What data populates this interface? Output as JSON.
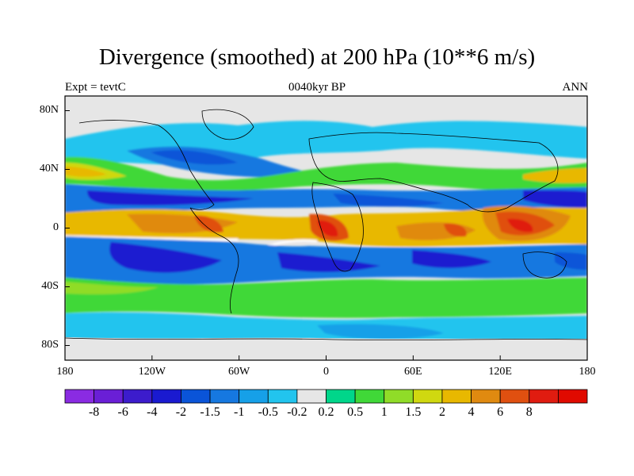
{
  "title": "Divergence (smoothed) at 200 hPa (10**6 m/s)",
  "subtitle_left": "Expt = tevtC",
  "subtitle_center": "0040kyr BP",
  "subtitle_right": "ANN",
  "map": {
    "lat_range": [
      -90,
      90
    ],
    "lon_range": [
      -180,
      180
    ],
    "lat_ticks": [
      {
        "value": 80,
        "label": "80N"
      },
      {
        "value": 40,
        "label": "40N"
      },
      {
        "value": 0,
        "label": "0"
      },
      {
        "value": -40,
        "label": "40S"
      },
      {
        "value": -80,
        "label": "80S"
      }
    ],
    "lon_ticks": [
      {
        "value": -180,
        "label": "180"
      },
      {
        "value": -120,
        "label": "120W"
      },
      {
        "value": -60,
        "label": "60W"
      },
      {
        "value": 0,
        "label": "0"
      },
      {
        "value": 60,
        "label": "60E"
      },
      {
        "value": 120,
        "label": "120E"
      },
      {
        "value": 180,
        "label": "180"
      }
    ]
  },
  "colorbar": {
    "colors": [
      "#8a2be2",
      "#6a1fd6",
      "#3c1ccc",
      "#1a1ad0",
      "#0a54d8",
      "#1678e0",
      "#16a0e8",
      "#22c4ee",
      "#e6e6e6",
      "#00d68a",
      "#40d838",
      "#90dc28",
      "#d0d810",
      "#e8b800",
      "#e08a10",
      "#e05010",
      "#e01c10",
      "#e00a00"
    ],
    "labels": [
      "-8",
      "-6",
      "-4",
      "-2",
      "-1.5",
      "-1",
      "-0.5",
      "-0.2",
      "0.2",
      "0.5",
      "1",
      "1.5",
      "2",
      "4",
      "6",
      "8"
    ]
  }
}
